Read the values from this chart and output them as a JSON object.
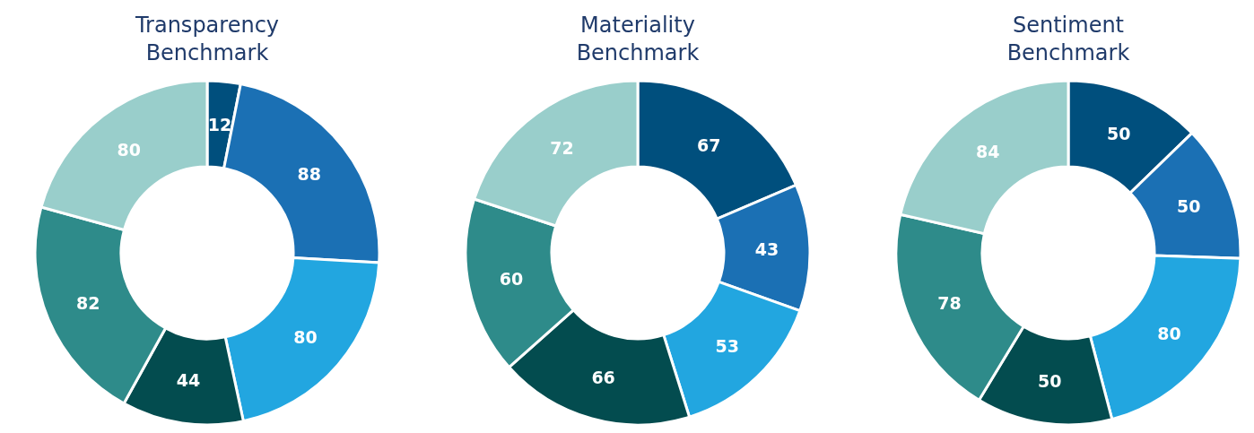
{
  "chart_data": [
    {
      "type": "donut",
      "title": "Transparency Benchmark",
      "categories": [
        null,
        null,
        null,
        null,
        null,
        null
      ],
      "values": [
        12,
        88,
        80,
        44,
        82,
        80
      ],
      "colors": [
        "#004f7d",
        "#1b70b4",
        "#22a6e0",
        "#034c4f",
        "#2e8b8a",
        "#99cecb"
      ],
      "data_labels": true
    },
    {
      "type": "donut",
      "title": "Materiality Benchmark",
      "categories": [
        null,
        null,
        null,
        null,
        null,
        null
      ],
      "values": [
        67,
        43,
        53,
        66,
        60,
        72
      ],
      "colors": [
        "#004f7d",
        "#1b70b4",
        "#22a6e0",
        "#034c4f",
        "#2e8b8a",
        "#99cecb"
      ],
      "data_labels": true
    },
    {
      "type": "donut",
      "title": "Sentiment Benchmark",
      "categories": [
        null,
        null,
        null,
        null,
        null,
        null
      ],
      "values": [
        50,
        50,
        80,
        50,
        78,
        84
      ],
      "colors": [
        "#004f7d",
        "#1b70b4",
        "#22a6e0",
        "#034c4f",
        "#2e8b8a",
        "#99cecb"
      ],
      "data_labels": true
    }
  ]
}
